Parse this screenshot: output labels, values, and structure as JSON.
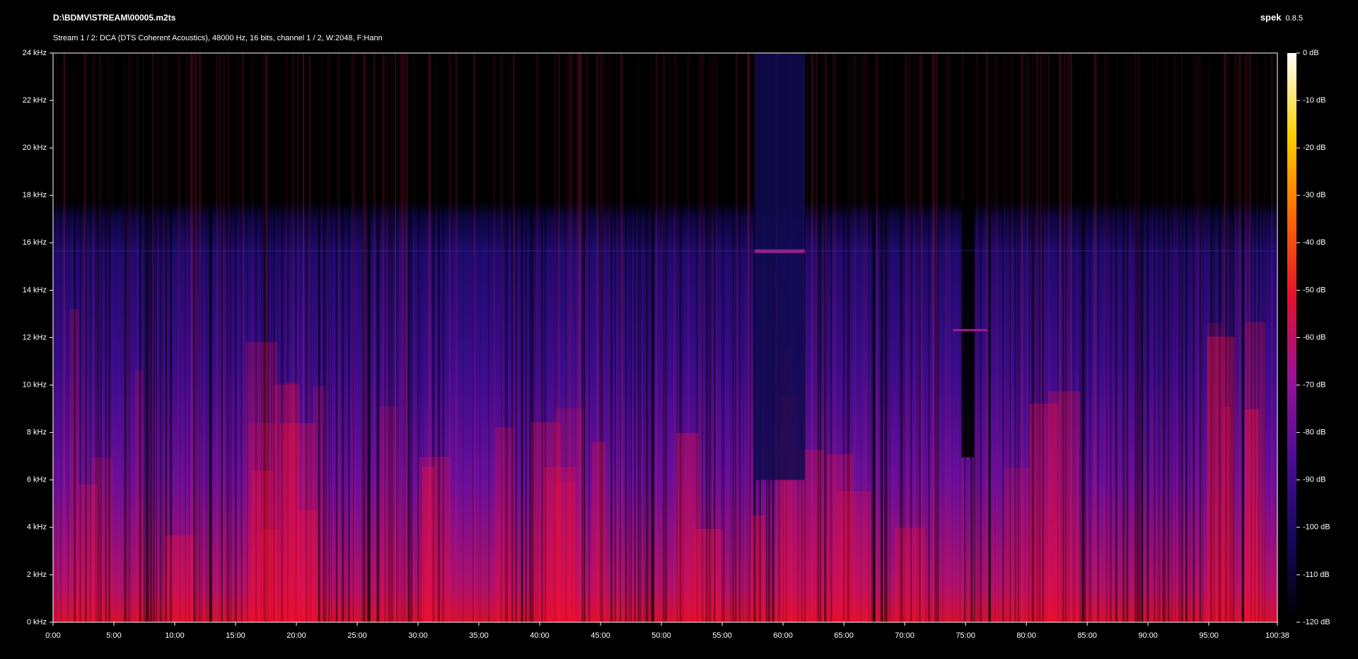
{
  "chart_data": {
    "type": "spectrogram",
    "title": "D:\\BDMV\\STREAM\\00005.m2ts",
    "subtitle": "Stream 1 / 2: DCA (DTS Coherent Acoustics), 48000 Hz, 16 bits, channel 1 / 2, W:2048, F:Hann",
    "app_name": "spek",
    "app_version": "0.8.5",
    "xlim": [
      0,
      6038
    ],
    "xticks": [
      {
        "value": 0,
        "label": "0:00"
      },
      {
        "value": 300,
        "label": "5:00"
      },
      {
        "value": 600,
        "label": "10:00"
      },
      {
        "value": 900,
        "label": "15:00"
      },
      {
        "value": 1200,
        "label": "20:00"
      },
      {
        "value": 1500,
        "label": "25:00"
      },
      {
        "value": 1800,
        "label": "30:00"
      },
      {
        "value": 2100,
        "label": "35:00"
      },
      {
        "value": 2400,
        "label": "40:00"
      },
      {
        "value": 2700,
        "label": "45:00"
      },
      {
        "value": 3000,
        "label": "50:00"
      },
      {
        "value": 3300,
        "label": "55:00"
      },
      {
        "value": 3600,
        "label": "60:00"
      },
      {
        "value": 3900,
        "label": "65:00"
      },
      {
        "value": 4200,
        "label": "70:00"
      },
      {
        "value": 4500,
        "label": "75:00"
      },
      {
        "value": 4800,
        "label": "80:00"
      },
      {
        "value": 5100,
        "label": "85:00"
      },
      {
        "value": 5400,
        "label": "90:00"
      },
      {
        "value": 5700,
        "label": "95:00"
      },
      {
        "value": 6038,
        "label": "100:38"
      }
    ],
    "ylim": [
      0,
      24
    ],
    "yticks": [
      {
        "value": 0,
        "label": "0 kHz"
      },
      {
        "value": 2,
        "label": "2 kHz"
      },
      {
        "value": 4,
        "label": "4 kHz"
      },
      {
        "value": 6,
        "label": "6 kHz"
      },
      {
        "value": 8,
        "label": "8 kHz"
      },
      {
        "value": 10,
        "label": "10 kHz"
      },
      {
        "value": 12,
        "label": "12 kHz"
      },
      {
        "value": 14,
        "label": "14 kHz"
      },
      {
        "value": 16,
        "label": "16 kHz"
      },
      {
        "value": 18,
        "label": "18 kHz"
      },
      {
        "value": 20,
        "label": "20 kHz"
      },
      {
        "value": 22,
        "label": "22 kHz"
      },
      {
        "value": 24,
        "label": "24 kHz"
      }
    ],
    "zlim": [
      -120,
      0
    ],
    "zticks": [
      {
        "value": 0,
        "label": "0 dB"
      },
      {
        "value": -10,
        "label": "-10 dB"
      },
      {
        "value": -20,
        "label": "-20 dB"
      },
      {
        "value": -30,
        "label": "-30 dB"
      },
      {
        "value": -40,
        "label": "-40 dB"
      },
      {
        "value": -50,
        "label": "-50 dB"
      },
      {
        "value": -60,
        "label": "-60 dB"
      },
      {
        "value": -70,
        "label": "-70 dB"
      },
      {
        "value": -80,
        "label": "-80 dB"
      },
      {
        "value": -90,
        "label": "-90 dB"
      },
      {
        "value": -100,
        "label": "-100 dB"
      },
      {
        "value": -110,
        "label": "-110 dB"
      },
      {
        "value": -120,
        "label": "-120 dB"
      }
    ],
    "colormap": [
      "#000000",
      "#12085a",
      "#4a0d94",
      "#9a109c",
      "#e4102c",
      "#ff6a00",
      "#ffd000",
      "#ffffff"
    ]
  }
}
